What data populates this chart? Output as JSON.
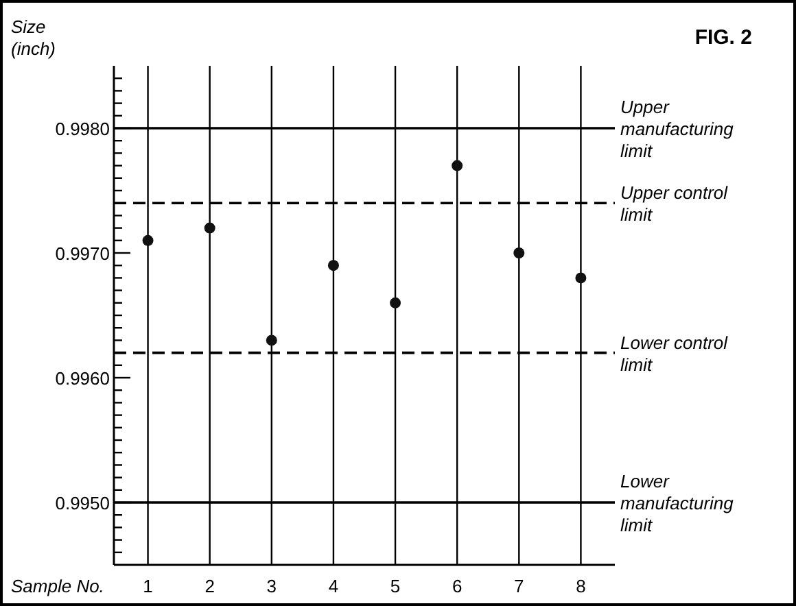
{
  "chart_data": {
    "type": "scatter",
    "title": "FIG. 2",
    "xlabel": "Sample No.",
    "ylabel": "Size (inch)",
    "categories": [
      "1",
      "2",
      "3",
      "4",
      "5",
      "6",
      "7",
      "8"
    ],
    "series": [
      {
        "color": "#111111",
        "values": [
          0.9971,
          0.9972,
          0.9963,
          0.9969,
          0.9966,
          0.9977,
          0.997,
          0.9968
        ]
      }
    ],
    "ylim": [
      0.9945,
      0.9985
    ],
    "yticks": [
      {
        "value": 0.9946,
        "label": null
      },
      {
        "value": 0.9947,
        "label": null
      },
      {
        "value": 0.9948,
        "label": null
      },
      {
        "value": 0.9949,
        "label": null
      },
      "0.9950",
      {
        "value": 0.9951,
        "label": null
      },
      {
        "value": 0.9952,
        "label": null
      },
      {
        "value": 0.9953,
        "label": null
      },
      {
        "value": 0.9954,
        "label": null
      },
      {
        "value": 0.9955,
        "label": null
      },
      {
        "value": 0.9956,
        "label": null
      },
      {
        "value": 0.9957,
        "label": null
      },
      {
        "value": 0.9958,
        "label": null
      },
      {
        "value": 0.9959,
        "label": null
      },
      {
        "value": 0.996,
        "label": "0.9960"
      },
      {
        "value": 0.9961,
        "label": null
      },
      {
        "value": 0.9962,
        "label": null
      },
      {
        "value": 0.9963,
        "label": null
      },
      {
        "value": 0.9964,
        "label": null
      },
      {
        "value": 0.9965,
        "label": null
      },
      {
        "value": 0.9966,
        "label": null
      },
      {
        "value": 0.9967,
        "label": null
      },
      {
        "value": 0.9968,
        "label": null
      },
      {
        "value": 0.9969,
        "label": null
      },
      {
        "value": 0.997,
        "label": "0.9970"
      },
      {
        "value": 0.9971,
        "label": null
      },
      {
        "value": 0.9972,
        "label": null
      },
      {
        "value": 0.9973,
        "label": null
      },
      {
        "value": 0.9974,
        "label": null
      },
      {
        "value": 0.9975,
        "label": null
      },
      {
        "value": 0.9976,
        "label": null
      },
      {
        "value": 0.9977,
        "label": null
      },
      {
        "value": 0.9978,
        "label": null
      },
      {
        "value": 0.9979,
        "label": null
      },
      {
        "value": 0.998,
        "label": "0.9980"
      },
      {
        "value": 0.9981,
        "label": null
      },
      {
        "value": 0.9982,
        "label": null
      },
      {
        "value": 0.9983,
        "label": null
      },
      {
        "value": 0.9984,
        "label": null
      }
    ],
    "ref_lines": [
      {
        "axis": "y",
        "value": 0.998,
        "label": "Upper manufacturing limit",
        "line_style": "solid"
      },
      {
        "axis": "y",
        "value": 0.9974,
        "label": "Upper control limit",
        "line_style": "dashed"
      },
      {
        "axis": "y",
        "value": 0.9962,
        "label": "Lower control limit",
        "line_style": "dashed"
      },
      {
        "axis": "y",
        "value": 0.995,
        "label": "Lower manufacturing limit",
        "line_style": "solid"
      }
    ],
    "grid": "x",
    "marker": "circle"
  }
}
